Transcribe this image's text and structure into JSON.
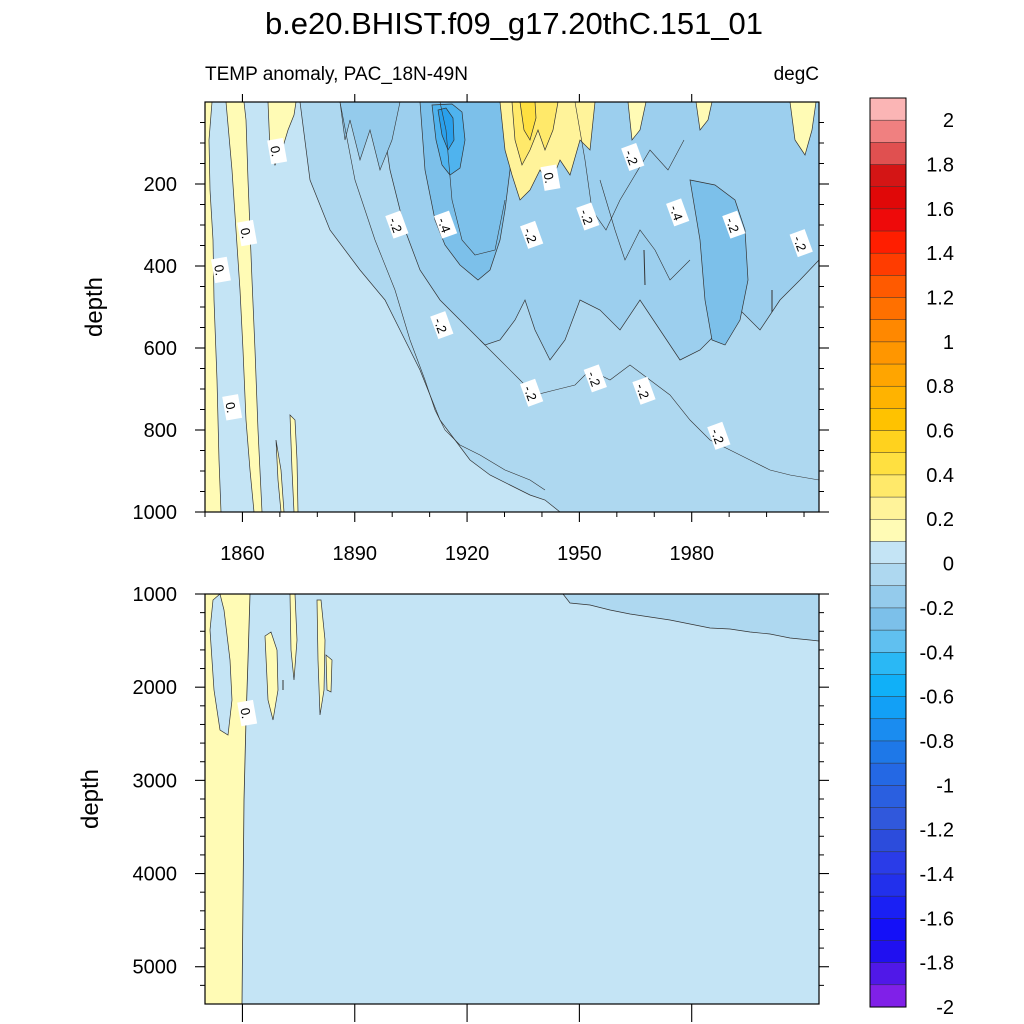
{
  "figure": {
    "title": "b.e20.BHIST.f09_g17.20thC.151_01",
    "subtitle_left": "TEMP anomaly, PAC_18N-49N",
    "subtitle_right": "degC"
  },
  "chart_data": [
    {
      "type": "heatmap",
      "panel": "upper",
      "title": "TEMP anomaly, PAC_18N-49N",
      "units": "degC",
      "xlabel": "",
      "ylabel": "depth",
      "xlim": [
        1850,
        2014
      ],
      "ylim": [
        1000,
        0
      ],
      "x_ticks": [
        1860,
        1890,
        1920,
        1950,
        1980
      ],
      "y_ticks": [
        200,
        400,
        600,
        800,
        1000
      ],
      "contour_labels": [
        {
          "text": "0.",
          "x": 1869,
          "y": 120
        },
        {
          "text": "0.",
          "x": 1861,
          "y": 320
        },
        {
          "text": "0.",
          "x": 1854,
          "y": 410
        },
        {
          "text": "0.",
          "x": 1857,
          "y": 745
        },
        {
          "text": "-.2",
          "x": 1901,
          "y": 300
        },
        {
          "text": "-.4",
          "x": 1914,
          "y": 300
        },
        {
          "text": "-.2",
          "x": 1913,
          "y": 545
        },
        {
          "text": "0.",
          "x": 1942,
          "y": 185
        },
        {
          "text": "-.2",
          "x": 1937,
          "y": 325
        },
        {
          "text": "-.2",
          "x": 1952,
          "y": 280
        },
        {
          "text": "-.2",
          "x": 1964,
          "y": 135
        },
        {
          "text": "-.4",
          "x": 1976,
          "y": 270
        },
        {
          "text": "-.2",
          "x": 1991,
          "y": 300
        },
        {
          "text": "-.2",
          "x": 2009,
          "y": 345
        },
        {
          "text": "-.2",
          "x": 1937,
          "y": 710
        },
        {
          "text": "-.2",
          "x": 1954,
          "y": 675
        },
        {
          "text": "-.2",
          "x": 1967,
          "y": 705
        },
        {
          "text": "-.2",
          "x": 1987,
          "y": 815
        }
      ]
    },
    {
      "type": "heatmap",
      "panel": "lower",
      "xlabel": "",
      "ylabel": "depth",
      "xlim": [
        1850,
        2014
      ],
      "ylim": [
        5400,
        1000
      ],
      "y_ticks": [
        1000,
        2000,
        3000,
        4000,
        5000
      ],
      "contour_labels": [
        {
          "text": "0.",
          "x": 1861,
          "y": 2280
        }
      ]
    }
  ],
  "colorbar": {
    "labels": [
      "2",
      "1.8",
      "1.6",
      "1.4",
      "1.2",
      "1",
      "0.8",
      "0.6",
      "0.4",
      "0.2",
      "0",
      "-0.2",
      "-0.4",
      "-0.6",
      "-0.8",
      "-1",
      "-1.2",
      "-1.4",
      "-1.6",
      "-1.8",
      "-2"
    ],
    "colors": [
      "#fbb5b5",
      "#f08080",
      "#e05050",
      "#d41515",
      "#e00808",
      "#ee0a0a",
      "#ff1e00",
      "#ff3c00",
      "#ff5a00",
      "#ff7000",
      "#ff8800",
      "#ff9600",
      "#ffa500",
      "#ffb300",
      "#ffc200",
      "#ffd21e",
      "#ffe040",
      "#ffe96a",
      "#fff39a",
      "#fffbb5",
      "#c4e4f5",
      "#aed8f0",
      "#94cbec",
      "#7cc0ea",
      "#60c0f0",
      "#2ab8f5",
      "#10b0f8",
      "#12a0f6",
      "#1a8cf0",
      "#1e78e8",
      "#2468e4",
      "#2a5fe0",
      "#3058dc",
      "#2c4cdc",
      "#2a3ce8",
      "#2230ec",
      "#1a20f4",
      "#1410f8",
      "#2010f0",
      "#5018e8",
      "#8020e8"
    ]
  }
}
